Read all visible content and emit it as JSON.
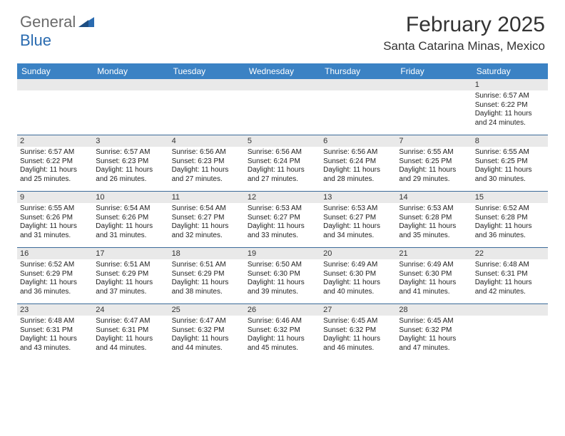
{
  "brand": {
    "general": "General",
    "blue": "Blue"
  },
  "title": "February 2025",
  "location": "Santa Catarina Minas, Mexico",
  "colors": {
    "header_bar": "#3b82c4",
    "week_divider": "#3b6a99",
    "daynum_band": "#e9e9e9",
    "logo_gray": "#6a6a6a",
    "logo_blue": "#2a6bb0",
    "text": "#333333",
    "background": "#ffffff"
  },
  "typography": {
    "title_fontsize": 30,
    "location_fontsize": 17,
    "dayhead_fontsize": 12,
    "daynum_fontsize": 11,
    "cell_fontsize": 10,
    "logo_fontsize": 22
  },
  "day_labels": [
    "Sunday",
    "Monday",
    "Tuesday",
    "Wednesday",
    "Thursday",
    "Friday",
    "Saturday"
  ],
  "weeks": [
    [
      {
        "n": "",
        "sunrise": "",
        "sunset": "",
        "daylight": ""
      },
      {
        "n": "",
        "sunrise": "",
        "sunset": "",
        "daylight": ""
      },
      {
        "n": "",
        "sunrise": "",
        "sunset": "",
        "daylight": ""
      },
      {
        "n": "",
        "sunrise": "",
        "sunset": "",
        "daylight": ""
      },
      {
        "n": "",
        "sunrise": "",
        "sunset": "",
        "daylight": ""
      },
      {
        "n": "",
        "sunrise": "",
        "sunset": "",
        "daylight": ""
      },
      {
        "n": "1",
        "sunrise": "Sunrise: 6:57 AM",
        "sunset": "Sunset: 6:22 PM",
        "daylight": "Daylight: 11 hours and 24 minutes."
      }
    ],
    [
      {
        "n": "2",
        "sunrise": "Sunrise: 6:57 AM",
        "sunset": "Sunset: 6:22 PM",
        "daylight": "Daylight: 11 hours and 25 minutes."
      },
      {
        "n": "3",
        "sunrise": "Sunrise: 6:57 AM",
        "sunset": "Sunset: 6:23 PM",
        "daylight": "Daylight: 11 hours and 26 minutes."
      },
      {
        "n": "4",
        "sunrise": "Sunrise: 6:56 AM",
        "sunset": "Sunset: 6:23 PM",
        "daylight": "Daylight: 11 hours and 27 minutes."
      },
      {
        "n": "5",
        "sunrise": "Sunrise: 6:56 AM",
        "sunset": "Sunset: 6:24 PM",
        "daylight": "Daylight: 11 hours and 27 minutes."
      },
      {
        "n": "6",
        "sunrise": "Sunrise: 6:56 AM",
        "sunset": "Sunset: 6:24 PM",
        "daylight": "Daylight: 11 hours and 28 minutes."
      },
      {
        "n": "7",
        "sunrise": "Sunrise: 6:55 AM",
        "sunset": "Sunset: 6:25 PM",
        "daylight": "Daylight: 11 hours and 29 minutes."
      },
      {
        "n": "8",
        "sunrise": "Sunrise: 6:55 AM",
        "sunset": "Sunset: 6:25 PM",
        "daylight": "Daylight: 11 hours and 30 minutes."
      }
    ],
    [
      {
        "n": "9",
        "sunrise": "Sunrise: 6:55 AM",
        "sunset": "Sunset: 6:26 PM",
        "daylight": "Daylight: 11 hours and 31 minutes."
      },
      {
        "n": "10",
        "sunrise": "Sunrise: 6:54 AM",
        "sunset": "Sunset: 6:26 PM",
        "daylight": "Daylight: 11 hours and 31 minutes."
      },
      {
        "n": "11",
        "sunrise": "Sunrise: 6:54 AM",
        "sunset": "Sunset: 6:27 PM",
        "daylight": "Daylight: 11 hours and 32 minutes."
      },
      {
        "n": "12",
        "sunrise": "Sunrise: 6:53 AM",
        "sunset": "Sunset: 6:27 PM",
        "daylight": "Daylight: 11 hours and 33 minutes."
      },
      {
        "n": "13",
        "sunrise": "Sunrise: 6:53 AM",
        "sunset": "Sunset: 6:27 PM",
        "daylight": "Daylight: 11 hours and 34 minutes."
      },
      {
        "n": "14",
        "sunrise": "Sunrise: 6:53 AM",
        "sunset": "Sunset: 6:28 PM",
        "daylight": "Daylight: 11 hours and 35 minutes."
      },
      {
        "n": "15",
        "sunrise": "Sunrise: 6:52 AM",
        "sunset": "Sunset: 6:28 PM",
        "daylight": "Daylight: 11 hours and 36 minutes."
      }
    ],
    [
      {
        "n": "16",
        "sunrise": "Sunrise: 6:52 AM",
        "sunset": "Sunset: 6:29 PM",
        "daylight": "Daylight: 11 hours and 36 minutes."
      },
      {
        "n": "17",
        "sunrise": "Sunrise: 6:51 AM",
        "sunset": "Sunset: 6:29 PM",
        "daylight": "Daylight: 11 hours and 37 minutes."
      },
      {
        "n": "18",
        "sunrise": "Sunrise: 6:51 AM",
        "sunset": "Sunset: 6:29 PM",
        "daylight": "Daylight: 11 hours and 38 minutes."
      },
      {
        "n": "19",
        "sunrise": "Sunrise: 6:50 AM",
        "sunset": "Sunset: 6:30 PM",
        "daylight": "Daylight: 11 hours and 39 minutes."
      },
      {
        "n": "20",
        "sunrise": "Sunrise: 6:49 AM",
        "sunset": "Sunset: 6:30 PM",
        "daylight": "Daylight: 11 hours and 40 minutes."
      },
      {
        "n": "21",
        "sunrise": "Sunrise: 6:49 AM",
        "sunset": "Sunset: 6:30 PM",
        "daylight": "Daylight: 11 hours and 41 minutes."
      },
      {
        "n": "22",
        "sunrise": "Sunrise: 6:48 AM",
        "sunset": "Sunset: 6:31 PM",
        "daylight": "Daylight: 11 hours and 42 minutes."
      }
    ],
    [
      {
        "n": "23",
        "sunrise": "Sunrise: 6:48 AM",
        "sunset": "Sunset: 6:31 PM",
        "daylight": "Daylight: 11 hours and 43 minutes."
      },
      {
        "n": "24",
        "sunrise": "Sunrise: 6:47 AM",
        "sunset": "Sunset: 6:31 PM",
        "daylight": "Daylight: 11 hours and 44 minutes."
      },
      {
        "n": "25",
        "sunrise": "Sunrise: 6:47 AM",
        "sunset": "Sunset: 6:32 PM",
        "daylight": "Daylight: 11 hours and 44 minutes."
      },
      {
        "n": "26",
        "sunrise": "Sunrise: 6:46 AM",
        "sunset": "Sunset: 6:32 PM",
        "daylight": "Daylight: 11 hours and 45 minutes."
      },
      {
        "n": "27",
        "sunrise": "Sunrise: 6:45 AM",
        "sunset": "Sunset: 6:32 PM",
        "daylight": "Daylight: 11 hours and 46 minutes."
      },
      {
        "n": "28",
        "sunrise": "Sunrise: 6:45 AM",
        "sunset": "Sunset: 6:32 PM",
        "daylight": "Daylight: 11 hours and 47 minutes."
      },
      {
        "n": "",
        "sunrise": "",
        "sunset": "",
        "daylight": ""
      }
    ]
  ]
}
